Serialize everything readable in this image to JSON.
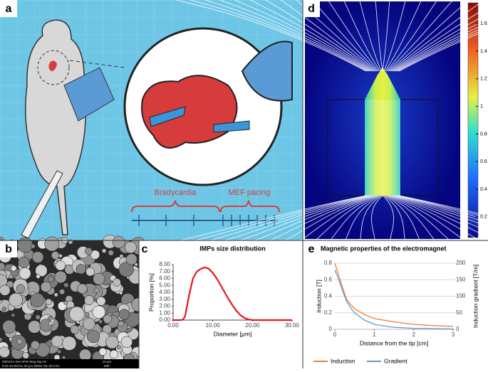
{
  "panels": {
    "a": "a",
    "b": "b",
    "c": "c",
    "d": "d",
    "e": "e"
  },
  "illustration": {
    "left_label": "Bradycardia",
    "right_label": "MEF pacing"
  },
  "sem_info": {
    "line1": "09/01/14  Det  HFW  Mag  Sig  HV",
    "line2": "9:31:10  Etd  51.20 µm  5000x  SE  25.0 kV",
    "scale": "10 µm",
    "name": "IMP"
  },
  "colorbar": {
    "lim": [
      0.05,
      1.75
    ],
    "ticks": [
      0.2,
      0.4,
      0.6,
      0.8,
      1,
      1.2,
      1.4,
      1.6
    ]
  },
  "chart_data": [
    {
      "type": "line",
      "title": "IMPs size distribution",
      "xlabel": "Diameter [μm]",
      "ylabel": "Proportion [%]",
      "x": [
        0,
        1,
        2,
        2.5,
        3,
        3.5,
        4,
        5,
        6,
        7,
        8,
        9,
        10,
        11,
        12,
        13,
        14,
        15,
        16,
        17,
        18,
        19,
        20,
        22,
        25,
        30
      ],
      "series": [
        {
          "name": "Proportion",
          "color": "#e8161b",
          "values": [
            0,
            0,
            0,
            0.1,
            0.5,
            2,
            3.5,
            6,
            7,
            7.4,
            7.6,
            7.4,
            6.8,
            6,
            5,
            4,
            3,
            2.1,
            1.3,
            0.7,
            0.3,
            0.1,
            0,
            0,
            0,
            0
          ]
        }
      ],
      "xlim": [
        0,
        30
      ],
      "xticks": [
        {
          "value": 0,
          "label": "0.00"
        },
        {
          "value": 10,
          "label": "10.00"
        },
        {
          "value": 20,
          "label": "20.00"
        },
        {
          "value": 30,
          "label": "30.00"
        }
      ],
      "ylim": [
        0,
        8
      ],
      "yticks": [
        {
          "value": 0,
          "label": "0.00"
        },
        {
          "value": 1,
          "label": "1.00"
        },
        {
          "value": 2,
          "label": "2.00"
        },
        {
          "value": 3,
          "label": "3.00"
        },
        {
          "value": 4,
          "label": "4.00"
        },
        {
          "value": 5,
          "label": "5.00"
        },
        {
          "value": 6,
          "label": "6.00"
        },
        {
          "value": 7,
          "label": "7.00"
        },
        {
          "value": 8,
          "label": "8.00"
        }
      ],
      "grid": false,
      "legend": false
    },
    {
      "type": "line",
      "title": "Magnetic properties of the electromagnet",
      "xlabel": "Distance from the tip [cm]",
      "ylabel": "Induction [T]",
      "y2label": "Induction gradient [T/m]",
      "x": [
        0,
        0.1,
        0.2,
        0.3,
        0.4,
        0.5,
        0.75,
        1,
        1.5,
        2,
        2.5,
        3
      ],
      "series": [
        {
          "name": "Induction",
          "color": "#ed7d31",
          "values": [
            0.8,
            0.65,
            0.5,
            0.36,
            0.3,
            0.25,
            0.18,
            0.13,
            0.09,
            0.06,
            0.045,
            0.035
          ]
        },
        {
          "name": "Gradient",
          "color": "#5b9bd5",
          "axis": "y2",
          "values": [
            180,
            150,
            115,
            85,
            65,
            50,
            28,
            15,
            6,
            3,
            2,
            1
          ]
        }
      ],
      "xlim": [
        0,
        3
      ],
      "xticks": [
        0,
        1,
        2,
        3
      ],
      "ylim": [
        0,
        0.8
      ],
      "yticks": [
        0,
        0.2,
        0.4,
        0.6,
        0.8
      ],
      "y2lim": [
        0,
        200
      ],
      "y2ticks": [
        0,
        50,
        100,
        150,
        200
      ],
      "grid": true,
      "legend": "bottom"
    }
  ]
}
